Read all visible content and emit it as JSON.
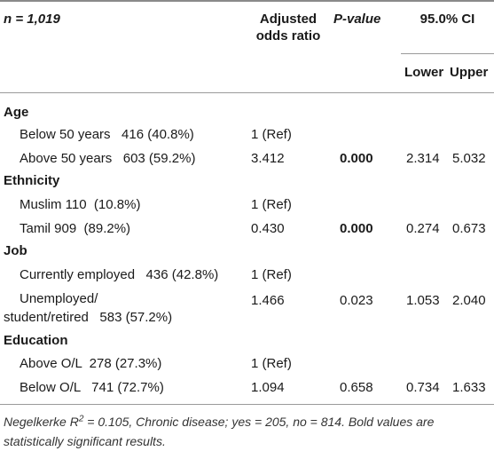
{
  "header": {
    "n_label": "n = 1,019",
    "aor_line1": "Adjusted",
    "aor_line2": "odds ratio",
    "pvalue_label": "P-value",
    "ci_label": "95.0% CI",
    "lower_label": "Lower",
    "upper_label": "Upper"
  },
  "sections": [
    {
      "title": "Age",
      "rows": [
        {
          "label": "Below 50 years   416 (40.8%)",
          "aor": "1 (Ref)",
          "p": "",
          "lower": "",
          "upper": ""
        },
        {
          "label": "Above 50 years   603 (59.2%)",
          "aor": "3.412",
          "p": "0.000",
          "lower": "2.314",
          "upper": "5.032"
        }
      ]
    },
    {
      "title": "Ethnicity",
      "rows": [
        {
          "label": "Muslim 110  (10.8%)",
          "aor": "1 (Ref)",
          "p": "",
          "lower": "",
          "upper": ""
        },
        {
          "label": "Tamil 909  (89.2%)",
          "aor": "0.430",
          "p": "0.000",
          "lower": "0.274",
          "upper": "0.673"
        }
      ]
    },
    {
      "title": "Job",
      "rows": [
        {
          "label": "Currently employed   436 (42.8%)",
          "aor": "1 (Ref)",
          "p": "",
          "lower": "",
          "upper": ""
        },
        {
          "label_line1": "Unemployed/",
          "label_line2": "student/retired   583 (57.2%)",
          "aor": "1.466",
          "p": "0.023",
          "lower": "1.053",
          "upper": "2.040"
        }
      ]
    },
    {
      "title": "Education",
      "rows": [
        {
          "label": "Above O/L  278 (27.3%)",
          "aor": "1 (Ref)",
          "p": "",
          "lower": "",
          "upper": ""
        },
        {
          "label": "Below O/L   741 (72.7%)",
          "aor": "1.094",
          "p": "0.658",
          "lower": "0.734",
          "upper": "1.633"
        }
      ]
    }
  ],
  "footnote": {
    "prefix": "Negelkerke R",
    "sup": "2",
    "rest": " = 0.105, Chronic disease; yes = 205, no = 814. Bold values are statistically significant results."
  }
}
